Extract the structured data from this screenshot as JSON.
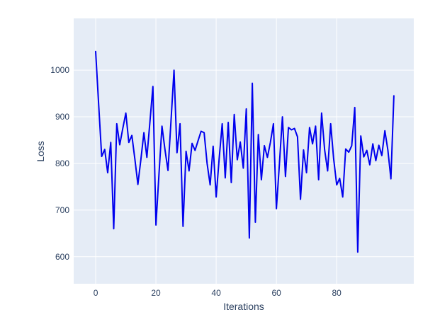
{
  "chart_data": {
    "type": "line",
    "title": "",
    "xlabel": "Iterations",
    "ylabel": "Loss",
    "x_ticks": [
      0,
      20,
      40,
      60,
      80
    ],
    "y_ticks": [
      600,
      700,
      800,
      900,
      1000
    ],
    "xlim": [
      -7.3,
      105.6
    ],
    "ylim": [
      542,
      1111
    ],
    "grid": true,
    "legend": "none",
    "x": [
      0,
      1,
      2,
      3,
      4,
      5,
      6,
      7,
      8,
      9,
      10,
      11,
      12,
      13,
      14,
      15,
      16,
      17,
      18,
      19,
      20,
      21,
      22,
      23,
      24,
      25,
      26,
      27,
      28,
      29,
      30,
      31,
      32,
      33,
      34,
      35,
      36,
      37,
      38,
      39,
      40,
      41,
      42,
      43,
      44,
      45,
      46,
      47,
      48,
      49,
      50,
      51,
      52,
      53,
      54,
      55,
      56,
      57,
      58,
      59,
      60,
      61,
      62,
      63,
      64,
      65,
      66,
      67,
      68,
      69,
      70,
      71,
      72,
      73,
      74,
      75,
      76,
      77,
      78,
      79,
      80,
      81,
      82,
      83,
      84,
      85,
      86,
      87,
      88,
      89,
      90,
      91,
      92,
      93,
      94,
      95,
      96,
      97,
      98,
      99
    ],
    "series": [
      {
        "name": "Loss",
        "values": [
          1040,
          925,
          815,
          830,
          780,
          845,
          660,
          885,
          840,
          875,
          908,
          845,
          860,
          810,
          755,
          808,
          866,
          813,
          889,
          965,
          668,
          775,
          880,
          830,
          785,
          890,
          1000,
          823,
          885,
          665,
          826,
          784,
          843,
          828,
          849,
          869,
          866,
          800,
          754,
          837,
          728,
          810,
          885,
          769,
          888,
          759,
          905,
          808,
          846,
          790,
          917,
          640,
          972,
          674,
          862,
          765,
          838,
          813,
          845,
          885,
          703,
          800,
          900,
          772,
          877,
          872,
          875,
          857,
          723,
          829,
          780,
          877,
          842,
          880,
          765,
          908,
          829,
          784,
          885,
          810,
          754,
          768,
          728,
          831,
          824,
          838,
          920,
          610,
          859,
          814,
          828,
          797,
          842,
          806,
          839,
          817,
          870,
          829,
          767,
          945
        ]
      }
    ]
  },
  "style": {
    "plot_bg_color": "#e5ecf6",
    "grid_color": "#ffffff",
    "line_color": "#0000ee",
    "text_color": "#2a3f5f",
    "paper_bg_color": "#ffffff"
  }
}
